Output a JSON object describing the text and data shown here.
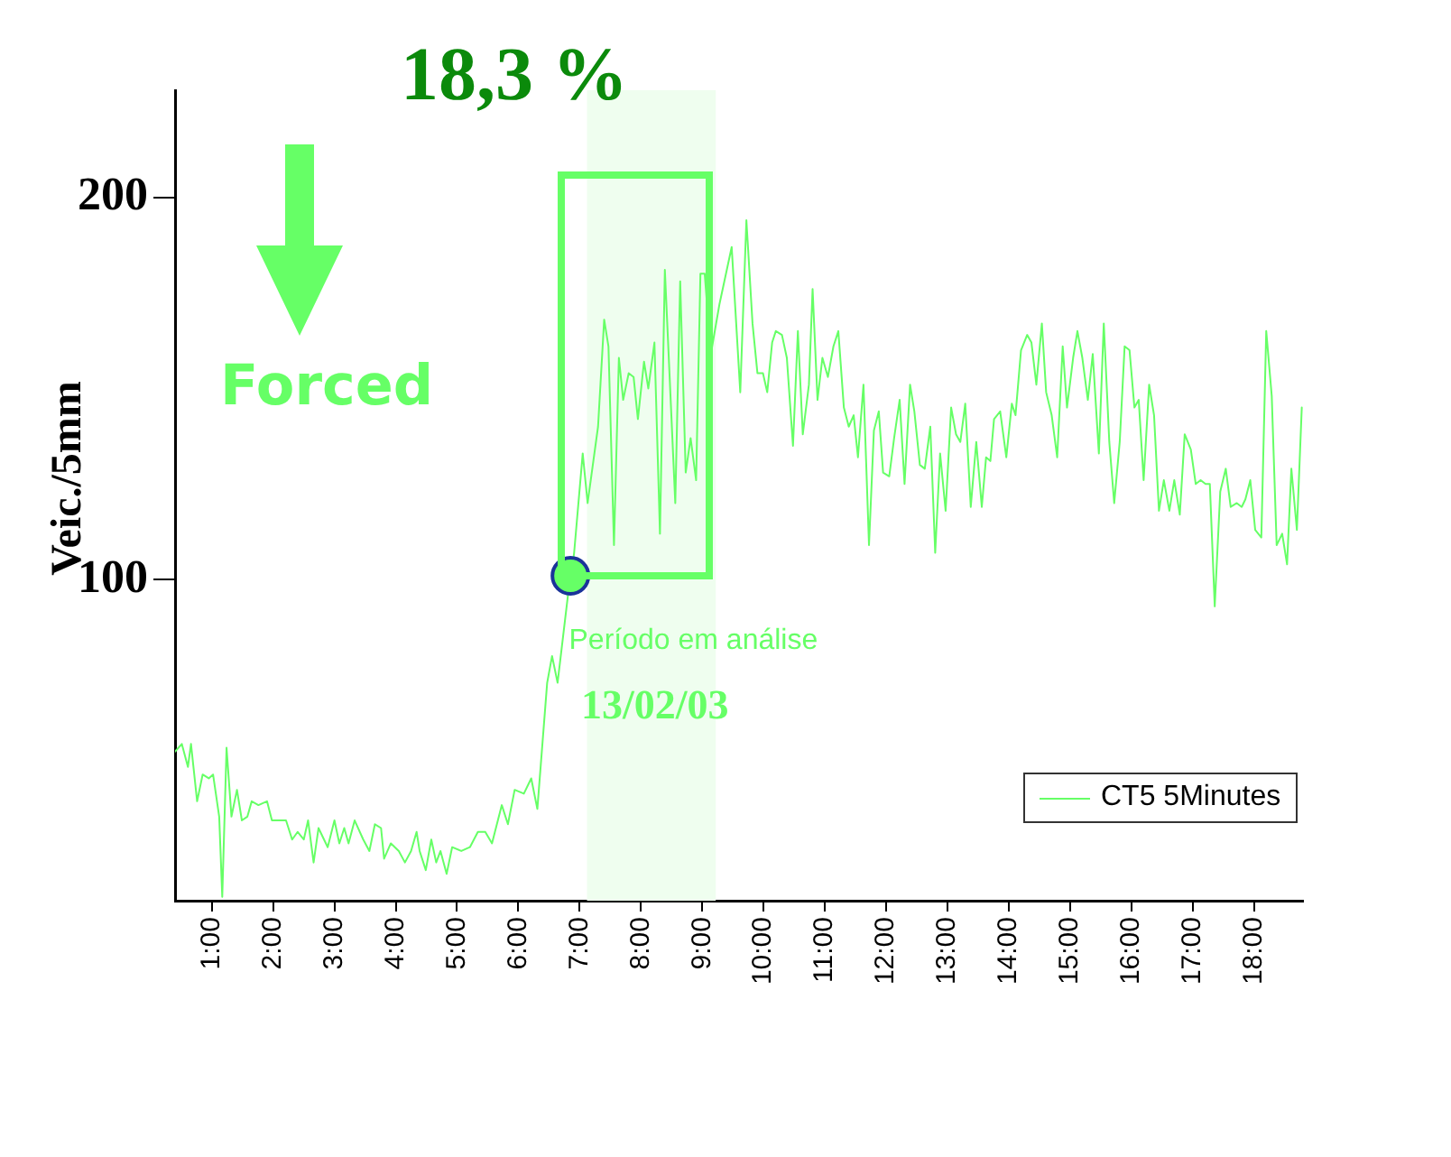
{
  "chart_data": {
    "type": "line",
    "title": "18,3 %",
    "ylabel": "Veic./5mm",
    "annotations": [
      "Forced",
      "13/02/03"
    ],
    "xlim": [
      0.4,
      18.8
    ],
    "ylim": [
      16,
      228
    ],
    "xticks": [
      {
        "value": 1,
        "label": "1:00"
      },
      {
        "value": 2,
        "label": "2:00"
      },
      {
        "value": 3,
        "label": "3:00"
      },
      {
        "value": 4,
        "label": "4:00"
      },
      {
        "value": 5,
        "label": "5:00"
      },
      {
        "value": 6,
        "label": "6:00"
      },
      {
        "value": 7,
        "label": "7:00"
      },
      {
        "value": 8,
        "label": "8:00"
      },
      {
        "value": 9,
        "label": "9:00"
      },
      {
        "value": 10,
        "label": "10:00"
      },
      {
        "value": 11,
        "label": "11:00"
      },
      {
        "value": 12,
        "label": "12:00"
      },
      {
        "value": 13,
        "label": "13:00"
      },
      {
        "value": 14,
        "label": "14:00"
      },
      {
        "value": 15,
        "label": "15:00"
      },
      {
        "value": 16,
        "label": "16:00"
      },
      {
        "value": 17,
        "label": "17:00"
      },
      {
        "value": 18,
        "label": "18:00"
      }
    ],
    "yticks": [
      100,
      200
    ],
    "legend": "bottom right",
    "bands": [
      {
        "axis": "x",
        "from": 7.12,
        "to": 9.22,
        "label": "Período em análise",
        "color": "#effeef"
      }
    ],
    "series": [
      {
        "name": "CT5 5Minutes",
        "color": "#66ff66",
        "x": [
          0.4,
          0.51,
          0.61,
          0.66,
          0.76,
          0.85,
          0.95,
          1.02,
          1.12,
          1.17,
          1.24,
          1.32,
          1.41,
          1.49,
          1.58,
          1.65,
          1.76,
          1.9,
          1.98,
          2.21,
          2.31,
          2.4,
          2.5,
          2.57,
          2.66,
          2.74,
          2.89,
          3.0,
          3.08,
          3.16,
          3.23,
          3.33,
          3.47,
          3.57,
          3.66,
          3.76,
          3.81,
          3.92,
          4.05,
          4.15,
          4.25,
          4.34,
          4.39,
          4.49,
          4.58,
          4.66,
          4.73,
          4.83,
          4.92,
          5.07,
          5.21,
          5.34,
          5.46,
          5.57,
          5.73,
          5.83,
          5.94,
          6.09,
          6.21,
          6.31,
          6.47,
          6.55,
          6.64,
          6.81,
          6.91,
          7.05,
          7.13,
          7.3,
          7.4,
          7.47,
          7.56,
          7.64,
          7.71,
          7.8,
          7.88,
          7.95,
          8.05,
          8.12,
          8.22,
          8.31,
          8.39,
          8.56,
          8.64,
          8.73,
          8.81,
          8.9,
          8.97,
          9.04,
          9.14,
          9.28,
          9.48,
          9.62,
          9.72,
          9.82,
          9.9,
          9.99,
          10.06,
          10.14,
          10.2,
          10.3,
          10.38,
          10.48,
          10.56,
          10.64,
          10.74,
          10.8,
          10.88,
          10.96,
          11.05,
          11.14,
          11.22,
          11.31,
          11.39,
          11.47,
          11.54,
          11.63,
          11.72,
          11.8,
          11.88,
          11.95,
          12.05,
          12.13,
          12.22,
          12.3,
          12.39,
          12.46,
          12.55,
          12.63,
          12.72,
          12.8,
          12.88,
          12.97,
          13.06,
          13.14,
          13.21,
          13.29,
          13.38,
          13.47,
          13.56,
          13.63,
          13.7,
          13.76,
          13.86,
          13.96,
          14.05,
          14.11,
          14.2,
          14.3,
          14.37,
          14.45,
          14.54,
          14.61,
          14.7,
          14.79,
          14.88,
          14.95,
          15.05,
          15.12,
          15.2,
          15.29,
          15.37,
          15.47,
          15.55,
          15.64,
          15.72,
          15.81,
          15.89,
          15.97,
          16.05,
          16.12,
          16.2,
          16.29,
          16.37,
          16.45,
          16.53,
          16.62,
          16.7,
          16.79,
          16.87,
          16.97,
          17.05,
          17.13,
          17.21,
          17.28,
          17.36,
          17.45,
          17.54,
          17.62,
          17.72,
          17.8,
          17.86,
          17.94,
          18.02,
          18.12,
          18.2,
          18.29,
          18.37,
          18.46,
          18.54,
          18.61,
          18.7,
          18.78
        ],
        "values": [
          55,
          57,
          51,
          57,
          42,
          49,
          48,
          49,
          38,
          17,
          56,
          38,
          45,
          37,
          38,
          42,
          41,
          42,
          37,
          37,
          32,
          34,
          32,
          37,
          26,
          35,
          30,
          37,
          31,
          35,
          31,
          37,
          32,
          29,
          36,
          35,
          27,
          31,
          29,
          26,
          29,
          34,
          29,
          24,
          32,
          26,
          29,
          23,
          30,
          29,
          30,
          34,
          34,
          31,
          41,
          36,
          45,
          44,
          48,
          40,
          73,
          80,
          73,
          96,
          107,
          133,
          120,
          140,
          168,
          161,
          109,
          158,
          147,
          154,
          153,
          142,
          157,
          150,
          162,
          112,
          181,
          120,
          178,
          128,
          137,
          126,
          180,
          180,
          159,
          172,
          187,
          149,
          194,
          167,
          154,
          154,
          149,
          162,
          165,
          164,
          158,
          135,
          165,
          138,
          151,
          176,
          147,
          158,
          153,
          161,
          165,
          145,
          140,
          143,
          132,
          151,
          109,
          139,
          144,
          128,
          127,
          137,
          147,
          125,
          151,
          144,
          130,
          129,
          140,
          107,
          133,
          118,
          145,
          138,
          136,
          146,
          119,
          136,
          119,
          132,
          131,
          142,
          144,
          132,
          146,
          143,
          160,
          164,
          162,
          151,
          167,
          149,
          143,
          132,
          161,
          145,
          158,
          165,
          158,
          147,
          159,
          133,
          167,
          136,
          120,
          136,
          161,
          160,
          145,
          147,
          126,
          151,
          143,
          118,
          126,
          118,
          126,
          117,
          138,
          134,
          125,
          126,
          125,
          125,
          93,
          123,
          129,
          119,
          120,
          119,
          121,
          126,
          113,
          111,
          165,
          148,
          109,
          112,
          104,
          129,
          113,
          145
        ]
      },
      {
        "type": "scatter",
        "marker": "circle",
        "color": "#66ff66",
        "x": [
          6.85
        ],
        "values": [
          101
        ]
      }
    ]
  }
}
